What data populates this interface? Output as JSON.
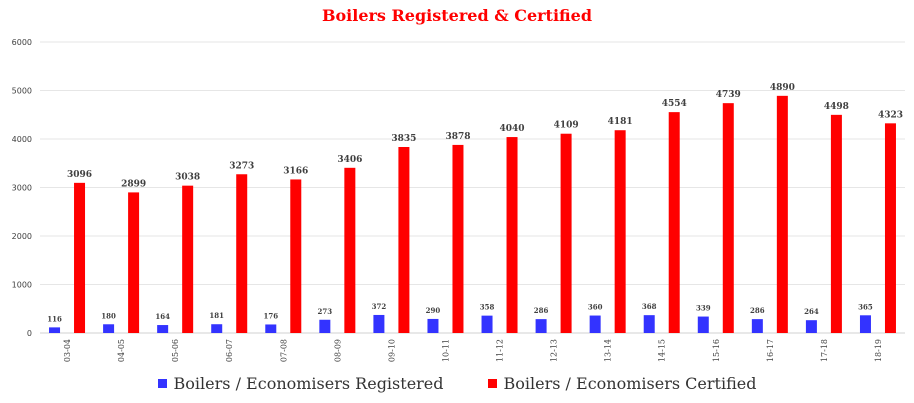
{
  "chart_data": {
    "type": "bar",
    "title": "Boilers Registered & Certified",
    "categories": [
      "03-04",
      "04-05",
      "05-06",
      "06-07",
      "07-08",
      "08-09",
      "09-10",
      "10-11",
      "11-12",
      "12-13",
      "13-14",
      "14-15",
      "15-16",
      "16-17",
      "17-18",
      "18-19"
    ],
    "series": [
      {
        "name": "Boilers / Economisers Registered",
        "color": "#3333ff",
        "values": [
          116,
          180,
          164,
          181,
          176,
          273,
          372,
          290,
          358,
          286,
          360,
          368,
          339,
          286,
          264,
          365
        ]
      },
      {
        "name": "Boilers / Economisers Certified",
        "color": "#ff0000",
        "values": [
          3096,
          2899,
          3038,
          3273,
          3166,
          3406,
          3835,
          3878,
          4040,
          4109,
          4181,
          4554,
          4739,
          4890,
          4498,
          4323
        ]
      }
    ],
    "xlabel": "",
    "ylabel": "",
    "ylim": [
      0,
      6000
    ],
    "yticks": [
      0,
      1000,
      2000,
      3000,
      4000,
      5000,
      6000
    ],
    "grid": true,
    "legend": "bottom",
    "colors": {
      "title": "#ff0000",
      "grid": "#e6e6e6",
      "axis": "#d0d0d0",
      "text": "#404040"
    }
  }
}
